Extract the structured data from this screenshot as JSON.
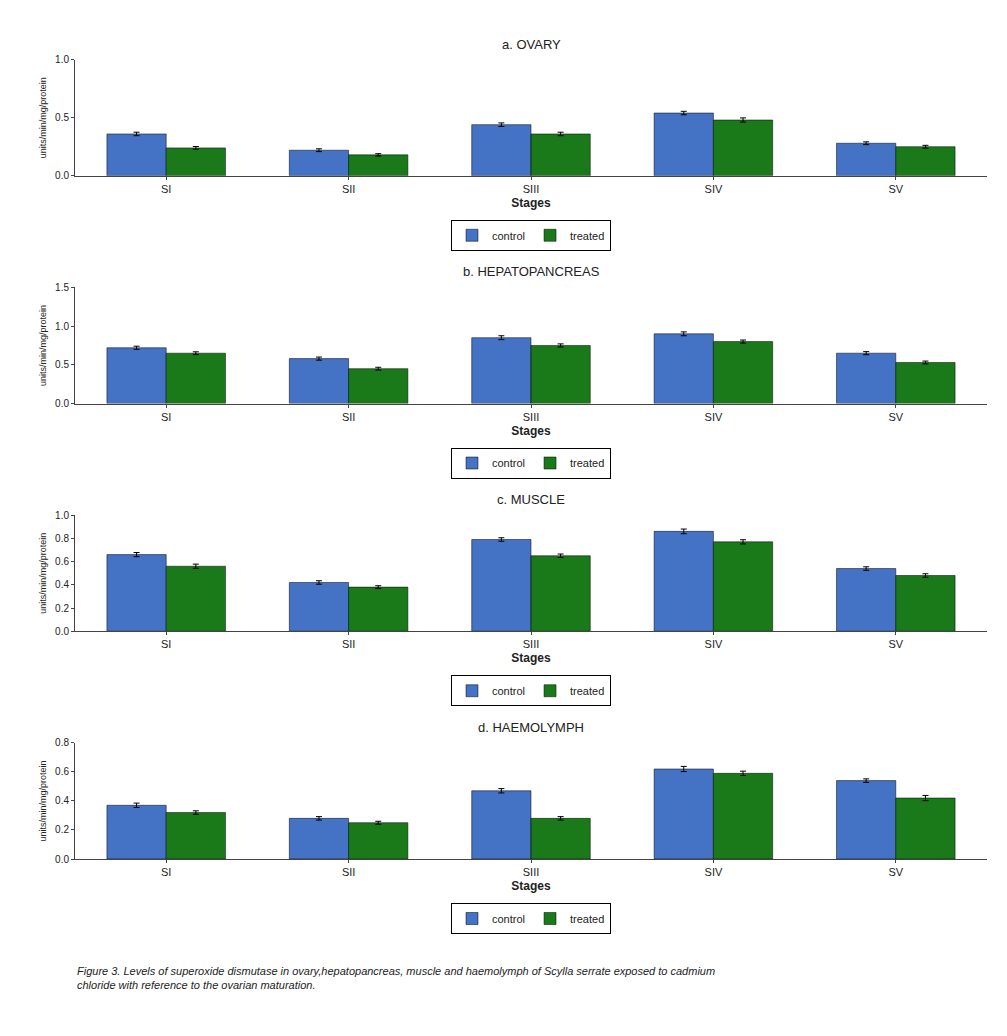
{
  "chart_data": [
    {
      "type": "bar",
      "title": "a. OVARY",
      "xlabel": "Stages",
      "ylabel": "units/min/mg/protein",
      "categories": [
        "SI",
        "SII",
        "SIII",
        "SIV",
        "SV"
      ],
      "series": [
        {
          "name": "control",
          "color": "#4472C4",
          "values": [
            0.36,
            0.22,
            0.44,
            0.54,
            0.28
          ],
          "errors": [
            0.015,
            0.012,
            0.015,
            0.015,
            0.012
          ]
        },
        {
          "name": "treated",
          "color": "#1a7a1a",
          "values": [
            0.24,
            0.18,
            0.36,
            0.48,
            0.25
          ],
          "errors": [
            0.012,
            0.01,
            0.015,
            0.018,
            0.012
          ]
        }
      ],
      "ylim": [
        0,
        1.0
      ],
      "yticks": [
        {
          "value": 0,
          "label": "0.0"
        },
        {
          "value": 0.5,
          "label": "0.5"
        },
        {
          "value": 1,
          "label": "1.0"
        }
      ],
      "grid": false,
      "legend": "bottom"
    },
    {
      "type": "bar",
      "title": "b. HEPATOPANCREAS",
      "xlabel": "Stages",
      "ylabel": "units/min/mg/protein",
      "categories": [
        "SI",
        "SII",
        "SIII",
        "SIV",
        "SV"
      ],
      "series": [
        {
          "name": "control",
          "color": "#4472C4",
          "values": [
            0.72,
            0.58,
            0.85,
            0.9,
            0.65
          ],
          "errors": [
            0.02,
            0.02,
            0.025,
            0.025,
            0.02
          ]
        },
        {
          "name": "treated",
          "color": "#1a7a1a",
          "values": [
            0.65,
            0.45,
            0.75,
            0.8,
            0.53
          ],
          "errors": [
            0.018,
            0.018,
            0.02,
            0.02,
            0.018
          ]
        }
      ],
      "ylim": [
        0,
        1.5
      ],
      "yticks": [
        {
          "value": 0,
          "label": "0.0"
        },
        {
          "value": 0.5,
          "label": "0.5"
        },
        {
          "value": 1,
          "label": "1.0"
        },
        {
          "value": 1.5,
          "label": "1.5"
        }
      ],
      "grid": false,
      "legend": "bottom"
    },
    {
      "type": "bar",
      "title": "c. MUSCLE",
      "xlabel": "Stages",
      "ylabel": "units/min/mg/protein",
      "categories": [
        "SI",
        "SII",
        "SIII",
        "SIV",
        "SV"
      ],
      "series": [
        {
          "name": "control",
          "color": "#4472C4",
          "values": [
            0.66,
            0.42,
            0.79,
            0.86,
            0.54
          ],
          "errors": [
            0.018,
            0.015,
            0.015,
            0.02,
            0.015
          ]
        },
        {
          "name": "treated",
          "color": "#1a7a1a",
          "values": [
            0.56,
            0.38,
            0.65,
            0.77,
            0.48
          ],
          "errors": [
            0.018,
            0.012,
            0.015,
            0.018,
            0.015
          ]
        }
      ],
      "ylim": [
        0,
        1.0
      ],
      "yticks": [
        {
          "value": 0,
          "label": "0.0"
        },
        0.2,
        0.4,
        0.6,
        0.8,
        {
          "value": 1,
          "label": "1.0"
        }
      ],
      "grid": false,
      "legend": "bottom"
    },
    {
      "type": "bar",
      "title": "d. HAEMOLYMPH",
      "xlabel": "Stages",
      "ylabel": "units/min/mg/protein",
      "categories": [
        "SI",
        "SII",
        "SIII",
        "SIV",
        "SV"
      ],
      "series": [
        {
          "name": "control",
          "color": "#4472C4",
          "values": [
            0.37,
            0.28,
            0.47,
            0.62,
            0.54
          ],
          "errors": [
            0.015,
            0.012,
            0.015,
            0.018,
            0.012
          ]
        },
        {
          "name": "treated",
          "color": "#1a7a1a",
          "values": [
            0.32,
            0.25,
            0.28,
            0.59,
            0.42
          ],
          "errors": [
            0.012,
            0.01,
            0.012,
            0.015,
            0.018
          ]
        }
      ],
      "ylim": [
        0,
        0.8
      ],
      "yticks": [
        {
          "value": 0,
          "label": "0.0"
        },
        0.2,
        0.4,
        0.6,
        0.8
      ],
      "grid": false,
      "legend": "bottom",
      "annotations": [
        "Figure 3. Levels of superoxide dismutase in ovary,hepatopancreas, muscle and haemolymph of Scylla serrate exposed to cadmium",
        "chloride with reference to the ovarian maturation."
      ]
    }
  ]
}
